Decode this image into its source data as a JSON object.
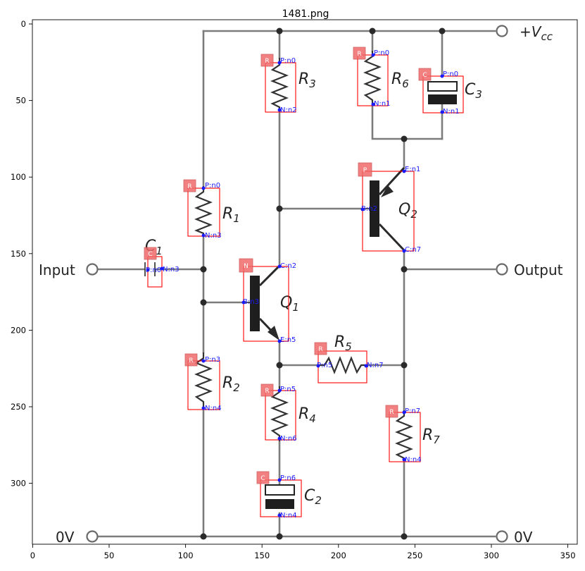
{
  "title": "1481.png",
  "axes": {
    "x_ticks": [
      "0",
      "50",
      "100",
      "150",
      "200",
      "250",
      "300",
      "350"
    ],
    "y_ticks": [
      "0",
      "50",
      "100",
      "150",
      "200",
      "250",
      "300"
    ]
  },
  "circuit_text": {
    "input": "Input",
    "output": "Output",
    "vcc_main": "+V",
    "vcc_sub": "cc",
    "zero_left": "0V",
    "zero_right": "0V"
  },
  "components": [
    {
      "id": "C1",
      "letter": "C",
      "sub": "1",
      "tag": "C",
      "pins": [
        "P:n0",
        "N:n3"
      ]
    },
    {
      "id": "R1",
      "letter": "R",
      "sub": "1",
      "tag": "R",
      "pins": [
        "P:n0",
        "N:n3"
      ]
    },
    {
      "id": "R2",
      "letter": "R",
      "sub": "2",
      "tag": "R",
      "pins": [
        "P:n3",
        "N:n4"
      ]
    },
    {
      "id": "R3",
      "letter": "R",
      "sub": "3",
      "tag": "R",
      "pins": [
        "P:n0",
        "N:n2"
      ]
    },
    {
      "id": "R4",
      "letter": "R",
      "sub": "4",
      "tag": "R",
      "pins": [
        "P:n5",
        "N:n6"
      ]
    },
    {
      "id": "C2",
      "letter": "C",
      "sub": "2",
      "tag": "C",
      "pins": [
        "P:n6",
        "N:n4"
      ]
    },
    {
      "id": "Q1",
      "letter": "Q",
      "sub": "1",
      "tag": "N",
      "pins": [
        "C:n2",
        "B:n3",
        "E:n5"
      ]
    },
    {
      "id": "R5",
      "letter": "R",
      "sub": "5",
      "tag": "R",
      "pins": [
        "P:n5",
        "N:n7"
      ]
    },
    {
      "id": "R6",
      "letter": "R",
      "sub": "6",
      "tag": "R",
      "pins": [
        "P:n0",
        "N:n1"
      ]
    },
    {
      "id": "C3",
      "letter": "C",
      "sub": "3",
      "tag": "C",
      "pins": [
        "P:n0",
        "N:n1"
      ]
    },
    {
      "id": "Q2",
      "letter": "Q",
      "sub": "2",
      "tag": "P",
      "pins": [
        "E:n1",
        "B:n2",
        "C:n7"
      ]
    },
    {
      "id": "R7",
      "letter": "R",
      "sub": "7",
      "tag": "R",
      "pins": [
        "P:n7",
        "N:n4"
      ]
    }
  ]
}
